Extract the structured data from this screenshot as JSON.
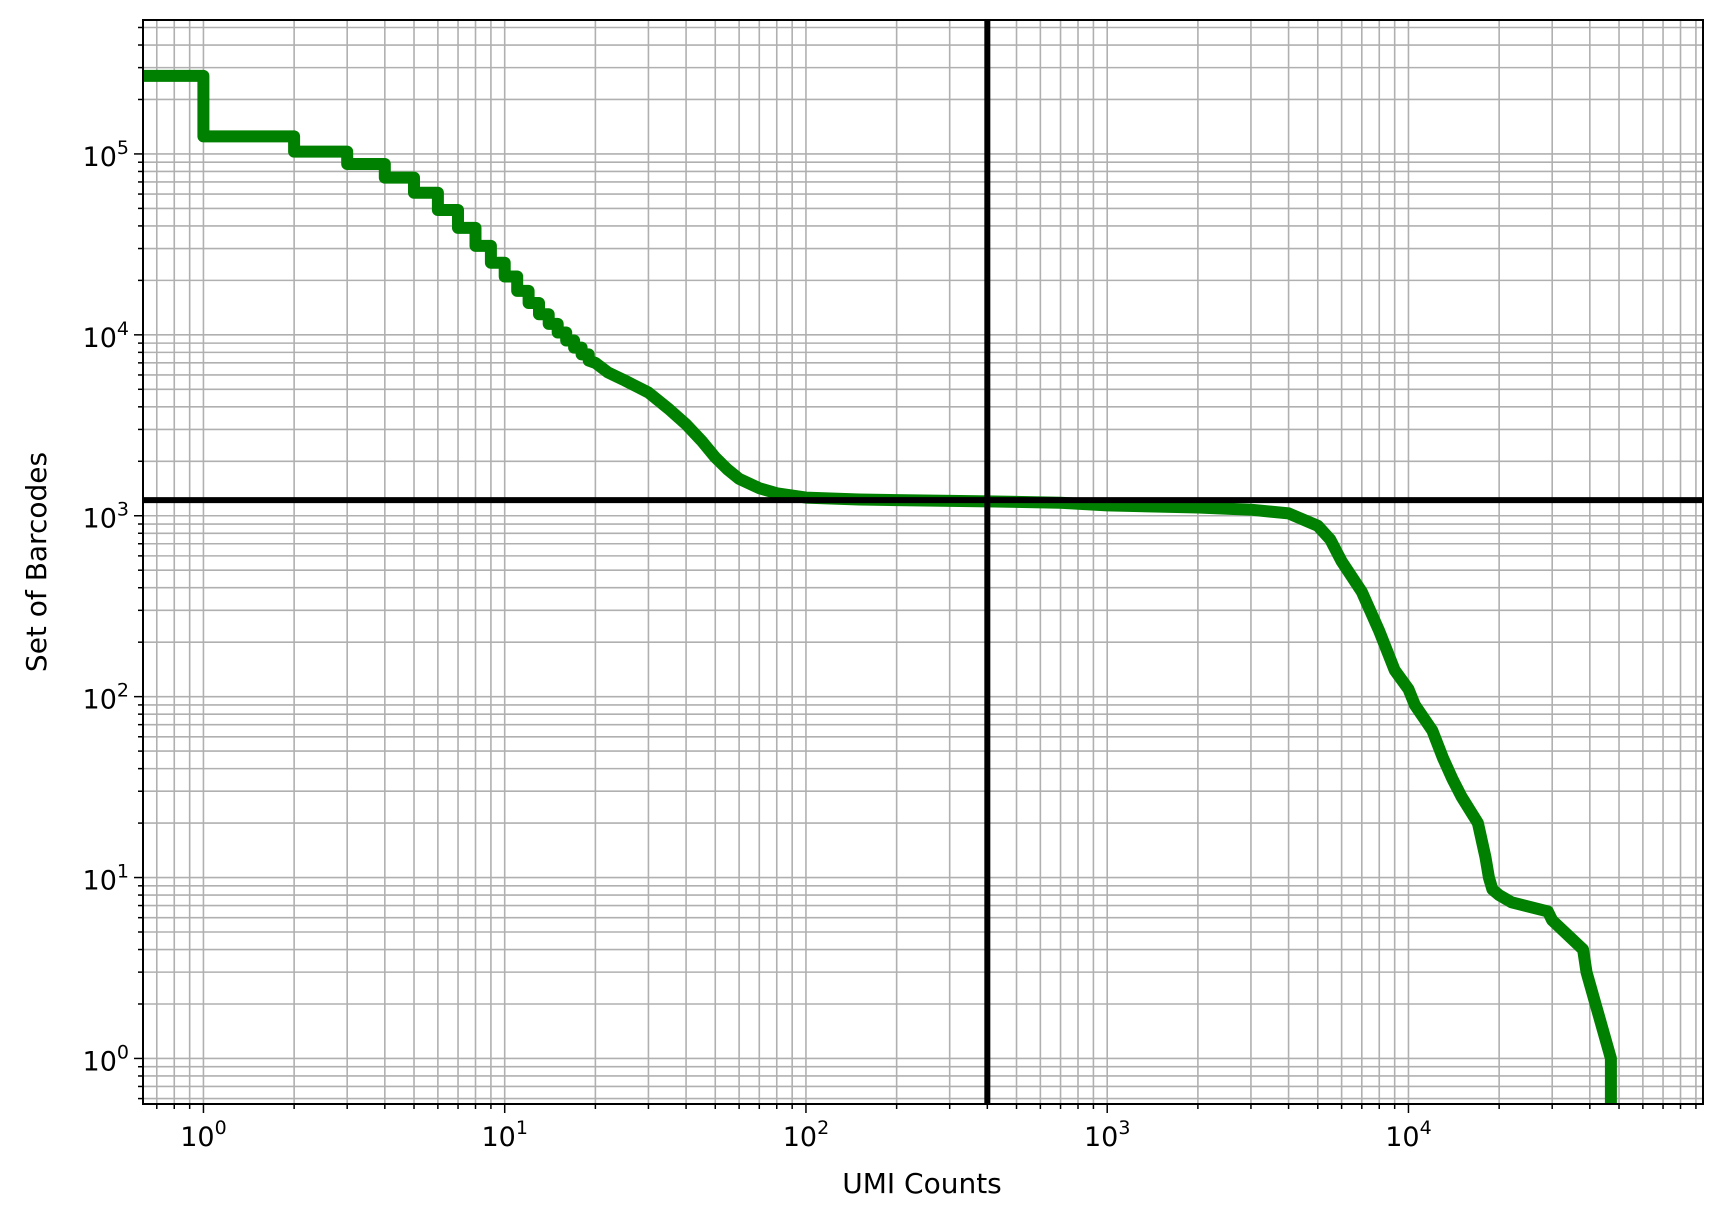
{
  "chart_data": {
    "type": "line",
    "title": "",
    "xlabel": "UMI Counts",
    "ylabel": "Set of Barcodes",
    "xscale": "log",
    "yscale": "log",
    "xlim": [
      0.63,
      95000
    ],
    "ylim": [
      0.56,
      550000
    ],
    "grid": "major and minor",
    "legend": "none",
    "x_ticks": [
      {
        "base": "10",
        "exp": "0",
        "value": 1
      },
      {
        "base": "10",
        "exp": "1",
        "value": 10
      },
      {
        "base": "10",
        "exp": "2",
        "value": 100
      },
      {
        "base": "10",
        "exp": "3",
        "value": 1000
      },
      {
        "base": "10",
        "exp": "4",
        "value": 10000
      }
    ],
    "y_ticks": [
      {
        "base": "10",
        "exp": "0",
        "value": 1
      },
      {
        "base": "10",
        "exp": "1",
        "value": 10
      },
      {
        "base": "10",
        "exp": "2",
        "value": 100
      },
      {
        "base": "10",
        "exp": "3",
        "value": 1000
      },
      {
        "base": "10",
        "exp": "4",
        "value": 10000
      },
      {
        "base": "10",
        "exp": "5",
        "value": 100000
      }
    ],
    "reference_lines": {
      "vertical_x": 400,
      "horizontal_y": 1220,
      "color": "#000000"
    },
    "series": [
      {
        "color": "#008000",
        "x": [
          0.63,
          1,
          1,
          2,
          2,
          3,
          3,
          4,
          4,
          5,
          5,
          6,
          6,
          7,
          7,
          8,
          8,
          9,
          9,
          10,
          10,
          11,
          11,
          12,
          12,
          13,
          13,
          14,
          14,
          15,
          15,
          16,
          16,
          17,
          17,
          18,
          18,
          19,
          19,
          20,
          22,
          25,
          30,
          35,
          40,
          45,
          50,
          55,
          60,
          70,
          80,
          100,
          150,
          200,
          400,
          700,
          1000,
          2000,
          3000,
          4000,
          5000,
          5500,
          6000,
          7000,
          8000,
          9000,
          10000,
          10500,
          12000,
          13000,
          14000,
          15000,
          17000,
          18000,
          18500,
          19000,
          20000,
          22000,
          29000,
          30000,
          38000,
          39000,
          47000,
          47000
        ],
        "y": [
          270000,
          270000,
          125000,
          125000,
          103000,
          103000,
          88000,
          88000,
          74000,
          74000,
          61000,
          61000,
          49000,
          49000,
          39000,
          39000,
          31000,
          31000,
          25000,
          25000,
          21000,
          21000,
          17500,
          17500,
          15000,
          15000,
          13000,
          13000,
          11500,
          11500,
          10300,
          10300,
          9300,
          9300,
          8500,
          8500,
          7800,
          7800,
          7200,
          7000,
          6200,
          5600,
          4800,
          3900,
          3200,
          2600,
          2100,
          1800,
          1600,
          1420,
          1330,
          1260,
          1230,
          1220,
          1200,
          1180,
          1140,
          1110,
          1080,
          1030,
          880,
          740,
          560,
          380,
          230,
          140,
          110,
          90,
          65,
          46,
          35,
          28,
          20,
          13,
          10,
          8.6,
          8.0,
          7.3,
          6.5,
          5.8,
          4.0,
          3.0,
          1.0,
          0.56
        ]
      }
    ]
  }
}
